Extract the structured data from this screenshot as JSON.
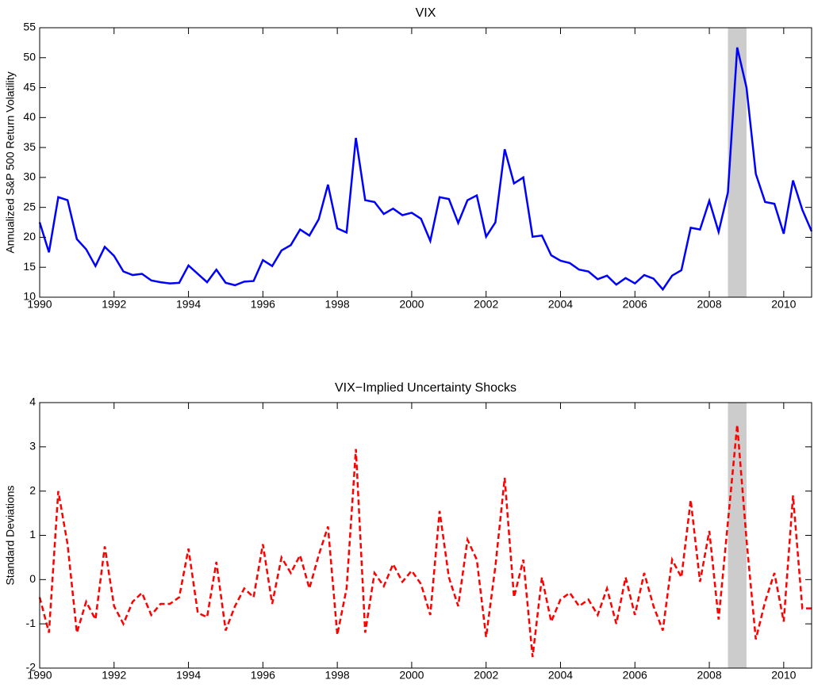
{
  "chart_data": [
    {
      "type": "line",
      "title": "VIX",
      "y_label": "Annualized S&P 500 Return Volatility",
      "x": [
        1990,
        1990.25,
        1990.5,
        1990.75,
        1991,
        1991.25,
        1991.5,
        1991.75,
        1992,
        1992.25,
        1992.5,
        1992.75,
        1993,
        1993.25,
        1993.5,
        1993.75,
        1994,
        1994.25,
        1994.5,
        1994.75,
        1995,
        1995.25,
        1995.5,
        1995.75,
        1996,
        1996.25,
        1996.5,
        1996.75,
        1997,
        1997.25,
        1997.5,
        1997.75,
        1998,
        1998.25,
        1998.5,
        1998.75,
        1999,
        1999.25,
        1999.5,
        1999.75,
        2000,
        2000.25,
        2000.5,
        2000.75,
        2001,
        2001.25,
        2001.5,
        2001.75,
        2002,
        2002.25,
        2002.5,
        2002.75,
        2003,
        2003.25,
        2003.5,
        2003.75,
        2004,
        2004.25,
        2004.5,
        2004.75,
        2005,
        2005.25,
        2005.5,
        2005.75,
        2006,
        2006.25,
        2006.5,
        2006.75,
        2007,
        2007.25,
        2007.5,
        2007.75,
        2008,
        2008.25,
        2008.5,
        2008.75,
        2009,
        2009.25,
        2009.5,
        2009.75,
        2010,
        2010.25,
        2010.5,
        2010.75
      ],
      "series": [
        {
          "color": "#0000ff",
          "line_style": "solid",
          "values": [
            22.5,
            17.5,
            26.7,
            26.2,
            19.7,
            18,
            15.2,
            18.4,
            16.9,
            14.3,
            13.7,
            13.9,
            12.8,
            12.5,
            12.3,
            12.4,
            15.3,
            13.9,
            12.5,
            14.6,
            12.4,
            12.0,
            12.6,
            12.7,
            16.2,
            15.2,
            17.8,
            18.7,
            21.3,
            20.3,
            23.0,
            28.8,
            21.5,
            20.8,
            36.6,
            26.2,
            25.9,
            23.9,
            24.8,
            23.7,
            24.1,
            23.1,
            19.4,
            26.7,
            26.4,
            22.4,
            26.2,
            27.0,
            20.1,
            22.5,
            34.7,
            29.0,
            30.0,
            20.1,
            20.3,
            17.0,
            16.1,
            15.7,
            14.6,
            14.3,
            13.0,
            13.6,
            12.1,
            13.2,
            12.3,
            13.7,
            13.1,
            11.3,
            13.6,
            14.5,
            21.6,
            21.3,
            26.1,
            20.9,
            27.5,
            51.7,
            45.0,
            30.6,
            25.9,
            25.6,
            20.6,
            29.5,
            24.6,
            21.0
          ]
        }
      ],
      "highlight": {
        "start": 2008.5,
        "end": 2009,
        "color": "#cccccc"
      },
      "xlim": [
        1990,
        2010.75
      ],
      "xticks": [
        1990,
        1992,
        1994,
        1996,
        1998,
        2000,
        2002,
        2004,
        2006,
        2008,
        2010
      ],
      "ylim": [
        10,
        55
      ],
      "yticks": [
        10,
        15,
        20,
        25,
        30,
        35,
        40,
        45,
        50,
        55
      ]
    },
    {
      "type": "line",
      "title": "VIX−Implied Uncertainty Shocks",
      "y_label": "Standard Deviations",
      "x": [
        1990,
        1990.25,
        1990.5,
        1990.75,
        1991,
        1991.25,
        1991.5,
        1991.75,
        1992,
        1992.25,
        1992.5,
        1992.75,
        1993,
        1993.25,
        1993.5,
        1993.75,
        1994,
        1994.25,
        1994.5,
        1994.75,
        1995,
        1995.25,
        1995.5,
        1995.75,
        1996,
        1996.25,
        1996.5,
        1996.75,
        1997,
        1997.25,
        1997.5,
        1997.75,
        1998,
        1998.25,
        1998.5,
        1998.75,
        1999,
        1999.25,
        1999.5,
        1999.75,
        2000,
        2000.25,
        2000.5,
        2000.75,
        2001,
        2001.25,
        2001.5,
        2001.75,
        2002,
        2002.25,
        2002.5,
        2002.75,
        2003,
        2003.25,
        2003.5,
        2003.75,
        2004,
        2004.25,
        2004.5,
        2004.75,
        2005,
        2005.25,
        2005.5,
        2005.75,
        2006,
        2006.25,
        2006.5,
        2006.75,
        2007,
        2007.25,
        2007.5,
        2007.75,
        2008,
        2008.25,
        2008.5,
        2008.75,
        2009,
        2009.25,
        2009.5,
        2009.75,
        2010,
        2010.25,
        2010.5,
        2010.75
      ],
      "series": [
        {
          "color": "#ff0000",
          "line_style": "dashed",
          "values": [
            -0.4,
            -1.2,
            2.0,
            0.8,
            -1.2,
            -0.5,
            -0.9,
            0.75,
            -0.6,
            -1.0,
            -0.5,
            -0.3,
            -0.8,
            -0.55,
            -0.55,
            -0.4,
            0.7,
            -0.75,
            -0.85,
            0.4,
            -1.15,
            -0.6,
            -0.2,
            -0.4,
            0.8,
            -0.55,
            0.5,
            0.15,
            0.55,
            -0.2,
            0.55,
            1.2,
            -1.25,
            -0.2,
            2.95,
            -1.2,
            0.15,
            -0.15,
            0.35,
            -0.05,
            0.2,
            -0.1,
            -0.8,
            1.55,
            0.05,
            -0.6,
            0.9,
            0.45,
            -1.3,
            0.3,
            2.3,
            -0.4,
            0.45,
            -1.75,
            0.05,
            -0.95,
            -0.45,
            -0.3,
            -0.6,
            -0.45,
            -0.8,
            -0.2,
            -1.0,
            0.05,
            -0.8,
            0.15,
            -0.6,
            -1.15,
            0.45,
            0.05,
            1.8,
            -0.05,
            1.1,
            -0.9,
            1.3,
            3.5,
            0.9,
            -1.35,
            -0.5,
            0.15,
            -0.95,
            1.9,
            -0.65,
            -0.65
          ]
        }
      ],
      "highlight": {
        "start": 2008.5,
        "end": 2009,
        "color": "#cccccc"
      },
      "xlim": [
        1990,
        2010.75
      ],
      "xticks": [
        1990,
        1992,
        1994,
        1996,
        1998,
        2000,
        2002,
        2004,
        2006,
        2008,
        2010
      ],
      "ylim": [
        -2,
        4
      ],
      "yticks": [
        -2,
        -1,
        0,
        1,
        2,
        3,
        4
      ]
    }
  ]
}
